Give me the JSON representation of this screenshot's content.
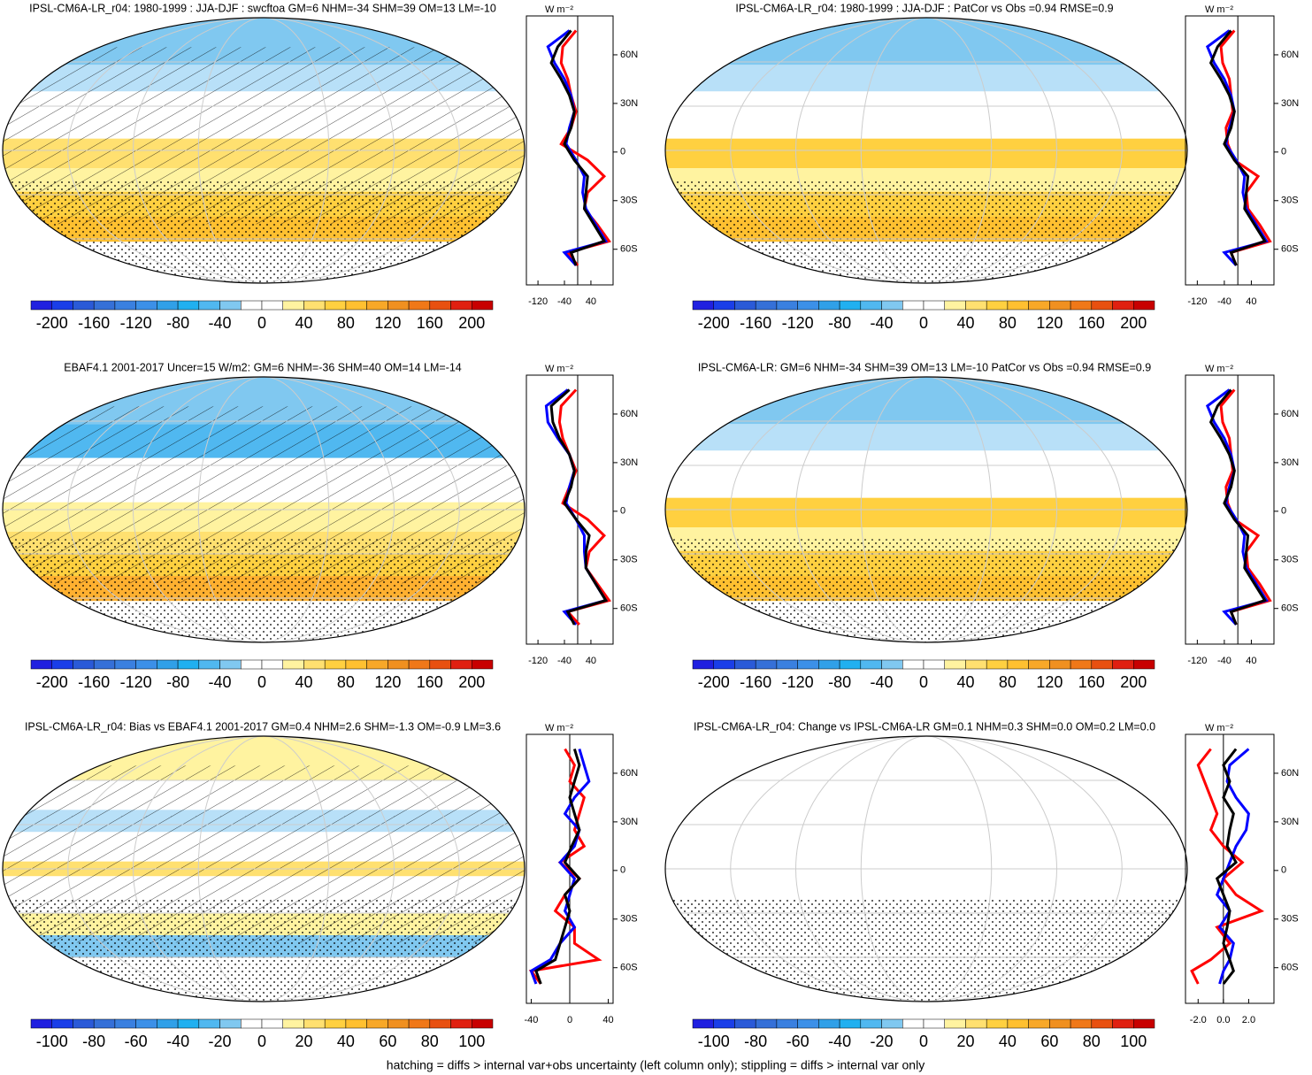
{
  "colorbar_colors": [
    "#2020e0",
    "#1a3ee8",
    "#2a5ad8",
    "#3570d8",
    "#3a80e0",
    "#3c90e8",
    "#30a0e8",
    "#20b0f0",
    "#50b8f0",
    "#80c8f0",
    "#ffffff",
    "#ffffff",
    "#fff3a0",
    "#ffe070",
    "#ffd040",
    "#ffc030",
    "#f8a828",
    "#f09020",
    "#f07818",
    "#e85010",
    "#e02010",
    "#c80000"
  ],
  "footnote": "hatching = diffs > internal var+obs uncertainty (left column only); stippling = diffs > internal var only",
  "panels": [
    {
      "title": "IPSL-CM6A-LR_r04: 1980-1999 : JJA-DJF : swcftoa GM=6 NHM=-34 SHM=39 OM=13 LM=-10",
      "colorbar": {
        "lim": [
          -220,
          220
        ],
        "ticks": [
          -200,
          -160,
          -120,
          -80,
          -40,
          0,
          40,
          80,
          120,
          160,
          200
        ]
      },
      "profile": {
        "units": "W m⁻²",
        "xlim": [
          -155,
          107
        ],
        "xticks": [
          -120,
          -40,
          40
        ],
        "ylim": [
          -82,
          84
        ],
        "yticks": [
          {
            "value": 60,
            "label": "60N"
          },
          {
            "value": 30,
            "label": "30N"
          },
          0,
          {
            "value": -30,
            "label": "30S"
          },
          {
            "value": -60,
            "label": "60S"
          }
        ],
        "lat": [
          75,
          65,
          55,
          45,
          35,
          25,
          15,
          5,
          -5,
          -15,
          -25,
          -35,
          -45,
          -55,
          -62,
          -70
        ],
        "series": [
          {
            "color": "#ff0000",
            "values": [
              -5,
              -45,
              -50,
              -30,
              -20,
              -5,
              -20,
              -50,
              30,
              80,
              30,
              20,
              60,
              95,
              -30,
              0
            ]
          },
          {
            "color": "#0000ff",
            "values": [
              -25,
              -90,
              -70,
              -40,
              -20,
              -10,
              -25,
              -35,
              -5,
              20,
              15,
              25,
              55,
              85,
              -40,
              -5
            ]
          },
          {
            "color": "#000000",
            "values": [
              -20,
              -60,
              -80,
              -50,
              -25,
              -10,
              -20,
              -40,
              -10,
              30,
              25,
              20,
              50,
              80,
              -20,
              -5
            ]
          }
        ]
      }
    },
    {
      "title": "IPSL-CM6A-LR_r04: 1980-1999 : JJA-DJF : PatCor vs Obs =0.94 RMSE=0.9",
      "colorbar": {
        "lim": [
          -220,
          220
        ],
        "ticks": [
          -200,
          -160,
          -120,
          -80,
          -40,
          0,
          40,
          80,
          120,
          160,
          200
        ]
      },
      "profile": {
        "units": "W m⁻²",
        "xlim": [
          -155,
          107
        ],
        "xticks": [
          -120,
          -40,
          40
        ],
        "ylim": [
          -82,
          84
        ],
        "yticks": [
          {
            "value": 60,
            "label": "60N"
          },
          {
            "value": 30,
            "label": "30N"
          },
          0,
          {
            "value": -30,
            "label": "30S"
          },
          {
            "value": -60,
            "label": "60S"
          }
        ],
        "lat": [
          75,
          65,
          55,
          45,
          35,
          25,
          15,
          5,
          -5,
          -15,
          -25,
          -35,
          -45,
          -55,
          -62,
          -70
        ],
        "series": [
          {
            "color": "#ff0000",
            "values": [
              -10,
              -50,
              -45,
              -25,
              -20,
              -15,
              -35,
              -30,
              -10,
              60,
              25,
              30,
              65,
              95,
              -20,
              -5
            ]
          },
          {
            "color": "#0000ff",
            "values": [
              -25,
              -90,
              -70,
              -40,
              -20,
              -10,
              -25,
              -35,
              -5,
              20,
              15,
              25,
              55,
              85,
              -40,
              -5
            ]
          },
          {
            "color": "#000000",
            "values": [
              -20,
              -60,
              -80,
              -50,
              -25,
              -10,
              -20,
              -40,
              -10,
              30,
              25,
              20,
              50,
              80,
              -20,
              -5
            ]
          }
        ]
      }
    },
    {
      "title": "EBAF4.1 2001-2017 Uncer=15 W/m2: GM=6 NHM=-36 SHM=40 OM=14 LM=-14",
      "colorbar": {
        "lim": [
          -220,
          220
        ],
        "ticks": [
          -200,
          -160,
          -120,
          -80,
          -40,
          0,
          40,
          80,
          120,
          160,
          200
        ]
      },
      "profile": {
        "units": "W m⁻²",
        "xlim": [
          -155,
          107
        ],
        "xticks": [
          -120,
          -40,
          40
        ],
        "ylim": [
          -82,
          84
        ],
        "yticks": [
          {
            "value": 60,
            "label": "60N"
          },
          {
            "value": 30,
            "label": "30N"
          },
          0,
          {
            "value": -30,
            "label": "30S"
          },
          {
            "value": -60,
            "label": "60S"
          }
        ],
        "lat": [
          75,
          65,
          55,
          45,
          35,
          25,
          15,
          5,
          -5,
          -15,
          -25,
          -35,
          -45,
          -55,
          -62,
          -70
        ],
        "series": [
          {
            "color": "#ff0000",
            "values": [
              -5,
              -50,
              -55,
              -45,
              -25,
              -5,
              -25,
              -45,
              30,
              80,
              35,
              25,
              60,
              95,
              -30,
              5
            ]
          },
          {
            "color": "#0000ff",
            "values": [
              -30,
              -95,
              -90,
              -60,
              -25,
              -10,
              -25,
              -35,
              -5,
              20,
              20,
              25,
              55,
              85,
              -40,
              -5
            ]
          },
          {
            "color": "#000000",
            "values": [
              -25,
              -80,
              -75,
              -55,
              -25,
              -10,
              -20,
              -40,
              -5,
              35,
              25,
              25,
              55,
              85,
              -30,
              -10
            ]
          }
        ]
      }
    },
    {
      "title": "IPSL-CM6A-LR: GM=6 NHM=-34 SHM=39 OM=13 LM=-10 PatCor vs Obs =0.94 RMSE=0.9",
      "colorbar": {
        "lim": [
          -220,
          220
        ],
        "ticks": [
          -200,
          -160,
          -120,
          -80,
          -40,
          0,
          40,
          80,
          120,
          160,
          200
        ]
      },
      "profile": {
        "units": "W m⁻²",
        "xlim": [
          -155,
          107
        ],
        "xticks": [
          -120,
          -40,
          40
        ],
        "ylim": [
          -82,
          84
        ],
        "yticks": [
          {
            "value": 60,
            "label": "60N"
          },
          {
            "value": 30,
            "label": "30N"
          },
          0,
          {
            "value": -30,
            "label": "30S"
          },
          {
            "value": -60,
            "label": "60S"
          }
        ],
        "lat": [
          75,
          65,
          55,
          45,
          35,
          25,
          15,
          5,
          -5,
          -15,
          -25,
          -35,
          -45,
          -55,
          -62,
          -70
        ],
        "series": [
          {
            "color": "#ff0000",
            "values": [
              -10,
              -50,
              -45,
              -25,
              -20,
              -15,
              -35,
              -30,
              -10,
              60,
              25,
              30,
              65,
              95,
              -20,
              -5
            ]
          },
          {
            "color": "#0000ff",
            "values": [
              -25,
              -90,
              -70,
              -40,
              -20,
              -10,
              -25,
              -35,
              -5,
              20,
              15,
              25,
              55,
              85,
              -40,
              -5
            ]
          },
          {
            "color": "#000000",
            "values": [
              -20,
              -60,
              -80,
              -50,
              -25,
              -10,
              -20,
              -40,
              -10,
              30,
              25,
              20,
              50,
              80,
              -20,
              -5
            ]
          }
        ]
      }
    },
    {
      "title": "IPSL-CM6A-LR_r04: Bias vs EBAF4.1 2001-2017 GM=0.4 NHM=2.6 SHM=-1.3 OM=-0.9 LM=3.6",
      "colorbar": {
        "lim": [
          -110,
          110
        ],
        "ticks": [
          -100,
          -80,
          -60,
          -40,
          -20,
          0,
          20,
          40,
          60,
          80,
          100
        ]
      },
      "profile": {
        "units": "W m⁻²",
        "xlim": [
          -45,
          45
        ],
        "xticks": [
          -40,
          0,
          40
        ],
        "ylim": [
          -82,
          84
        ],
        "yticks": [
          {
            "value": 60,
            "label": "60N"
          },
          {
            "value": 30,
            "label": "30N"
          },
          0,
          {
            "value": -30,
            "label": "30S"
          },
          {
            "value": -60,
            "label": "60S"
          }
        ],
        "lat": [
          75,
          65,
          55,
          45,
          35,
          25,
          15,
          5,
          -5,
          -15,
          -25,
          -35,
          -45,
          -55,
          -62,
          -70
        ],
        "series": [
          {
            "color": "#ff0000",
            "values": [
              -5,
              5,
              0,
              15,
              10,
              5,
              15,
              -10,
              10,
              -5,
              -15,
              5,
              5,
              30,
              -40,
              -30
            ]
          },
          {
            "color": "#0000ff",
            "values": [
              10,
              15,
              20,
              5,
              -5,
              10,
              5,
              -10,
              5,
              0,
              -5,
              5,
              -10,
              -20,
              -40,
              -35
            ]
          },
          {
            "color": "#000000",
            "values": [
              5,
              10,
              5,
              0,
              5,
              10,
              2,
              -5,
              10,
              -5,
              0,
              -5,
              -10,
              -15,
              -35,
              -30
            ]
          }
        ]
      }
    },
    {
      "title": "IPSL-CM6A-LR_r04: Change vs IPSL-CM6A-LR GM=0.1 NHM=0.3 SHM=0.0 OM=0.2 LM=0.0",
      "colorbar": {
        "lim": [
          -110,
          110
        ],
        "ticks": [
          -100,
          -80,
          -60,
          -40,
          -20,
          0,
          20,
          40,
          60,
          80,
          100
        ]
      },
      "profile": {
        "units": "W m⁻²",
        "xlim": [
          -3,
          4
        ],
        "xticks": [
          {
            "value": -2,
            "label": "-2.0"
          },
          {
            "value": 0,
            "label": "0.0"
          },
          {
            "value": 2,
            "label": "2.0"
          }
        ],
        "ylim": [
          -82,
          84
        ],
        "yticks": [
          {
            "value": 60,
            "label": "60N"
          },
          {
            "value": 30,
            "label": "30N"
          },
          0,
          {
            "value": -30,
            "label": "30S"
          },
          {
            "value": -60,
            "label": "60S"
          }
        ],
        "lat": [
          75,
          65,
          55,
          45,
          35,
          25,
          15,
          5,
          -5,
          -15,
          -25,
          -35,
          -45,
          -55,
          -62,
          -70
        ],
        "series": [
          {
            "color": "#ff0000",
            "values": [
              -1,
              -2,
              -1.5,
              -1,
              -0.5,
              -1,
              0,
              1.5,
              0,
              1,
              3,
              -0.5,
              0.5,
              -1,
              -2.5,
              -2
            ]
          },
          {
            "color": "#0000ff",
            "values": [
              2,
              0.5,
              0.3,
              1,
              2,
              1.8,
              1,
              0.5,
              0,
              -0.5,
              0.5,
              -0.3,
              0.8,
              0.5,
              0,
              -0.3
            ]
          },
          {
            "color": "#000000",
            "values": [
              1,
              0,
              0.5,
              0,
              0.8,
              0.5,
              0.3,
              1,
              -0.5,
              0,
              0.5,
              0.3,
              0,
              0.5,
              0.8,
              0
            ]
          }
        ]
      }
    }
  ]
}
